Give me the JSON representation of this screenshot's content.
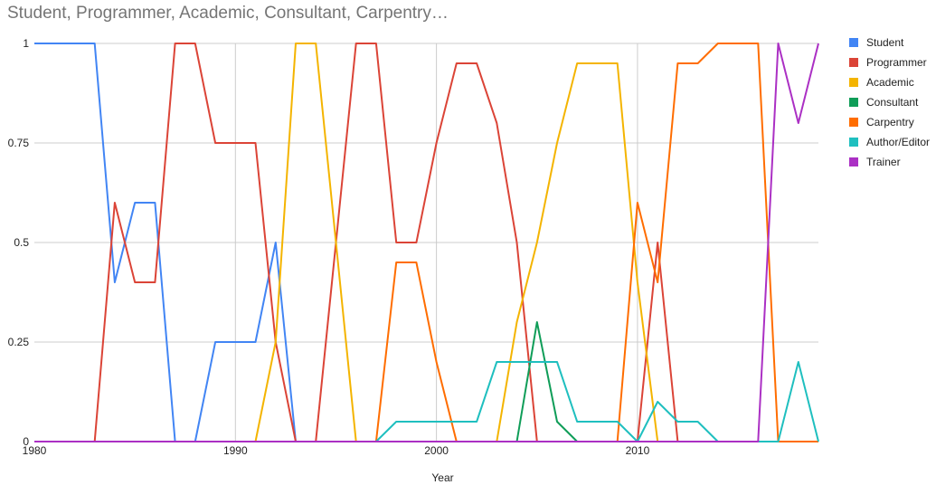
{
  "chart_data": {
    "type": "line",
    "title": "Student, Programmer, Academic, Consultant, Carpentry…",
    "xlabel": "Year",
    "ylabel": "",
    "xlim": [
      1980,
      2019
    ],
    "ylim": [
      0,
      1
    ],
    "x_ticks": [
      "1980",
      "1990",
      "2000",
      "2010"
    ],
    "y_ticks": [
      "0",
      "0.25",
      "0.5",
      "0.75",
      "1"
    ],
    "grid": true,
    "legend_position": "right",
    "x": [
      1980,
      1981,
      1982,
      1983,
      1984,
      1985,
      1986,
      1987,
      1988,
      1989,
      1990,
      1991,
      1992,
      1993,
      1994,
      1995,
      1996,
      1997,
      1998,
      1999,
      2000,
      2001,
      2002,
      2003,
      2004,
      2005,
      2006,
      2007,
      2008,
      2009,
      2010,
      2011,
      2012,
      2013,
      2014,
      2015,
      2016,
      2017,
      2018,
      2019
    ],
    "series": [
      {
        "name": "Student",
        "color": "#4285f4",
        "values": [
          1,
          1,
          1,
          1,
          0.4,
          0.6,
          0.6,
          0,
          0,
          0.25,
          0.25,
          0.25,
          0.5,
          0,
          0,
          0,
          0,
          0,
          0,
          0,
          0,
          0,
          0,
          0,
          0,
          0,
          0,
          0,
          0,
          0,
          0,
          0,
          0,
          0,
          0,
          0,
          0,
          0,
          0,
          0
        ]
      },
      {
        "name": "Programmer",
        "color": "#db4437",
        "values": [
          0,
          0,
          0,
          0,
          0.6,
          0.4,
          0.4,
          1,
          1,
          0.75,
          0.75,
          0.75,
          0.25,
          0,
          0,
          0.5,
          1,
          1,
          0.5,
          0.5,
          0.75,
          0.95,
          0.95,
          0.8,
          0.5,
          0,
          0,
          0,
          0,
          0,
          0,
          0.5,
          0,
          0,
          0,
          0,
          0,
          0,
          0,
          0
        ]
      },
      {
        "name": "Academic",
        "color": "#f4b400",
        "values": [
          0,
          0,
          0,
          0,
          0,
          0,
          0,
          0,
          0,
          0,
          0,
          0,
          0.25,
          1,
          1,
          0.5,
          0,
          0,
          0,
          0,
          0,
          0,
          0,
          0,
          0.3,
          0.5,
          0.75,
          0.95,
          0.95,
          0.95,
          0.4,
          0,
          0,
          0,
          0,
          0,
          0,
          0,
          0,
          0
        ]
      },
      {
        "name": "Consultant",
        "color": "#0f9d58",
        "values": [
          0,
          0,
          0,
          0,
          0,
          0,
          0,
          0,
          0,
          0,
          0,
          0,
          0,
          0,
          0,
          0,
          0,
          0,
          0,
          0,
          0,
          0,
          0,
          0,
          0,
          0.3,
          0.05,
          0,
          0,
          0,
          0,
          0,
          0,
          0,
          0,
          0,
          0,
          0,
          0,
          0
        ]
      },
      {
        "name": "Carpentry",
        "color": "#ff6d00",
        "values": [
          0,
          0,
          0,
          0,
          0,
          0,
          0,
          0,
          0,
          0,
          0,
          0,
          0,
          0,
          0,
          0,
          0,
          0,
          0.45,
          0.45,
          0.2,
          0,
          0,
          0,
          0,
          0,
          0,
          0,
          0,
          0,
          0.6,
          0.4,
          0.95,
          0.95,
          1,
          1,
          1,
          0,
          0,
          0
        ]
      },
      {
        "name": "Author/Editor",
        "color": "#1fbfbf",
        "values": [
          0,
          0,
          0,
          0,
          0,
          0,
          0,
          0,
          0,
          0,
          0,
          0,
          0,
          0,
          0,
          0,
          0,
          0,
          0.05,
          0.05,
          0.05,
          0.05,
          0.05,
          0.2,
          0.2,
          0.2,
          0.2,
          0.05,
          0.05,
          0.05,
          0,
          0.1,
          0.05,
          0.05,
          0,
          0,
          0,
          0,
          0.2,
          0
        ]
      },
      {
        "name": "Trainer",
        "color": "#ab30c4",
        "values": [
          0,
          0,
          0,
          0,
          0,
          0,
          0,
          0,
          0,
          0,
          0,
          0,
          0,
          0,
          0,
          0,
          0,
          0,
          0,
          0,
          0,
          0,
          0,
          0,
          0,
          0,
          0,
          0,
          0,
          0,
          0,
          0,
          0,
          0,
          0,
          0,
          0,
          1,
          0.8,
          1
        ]
      }
    ]
  }
}
